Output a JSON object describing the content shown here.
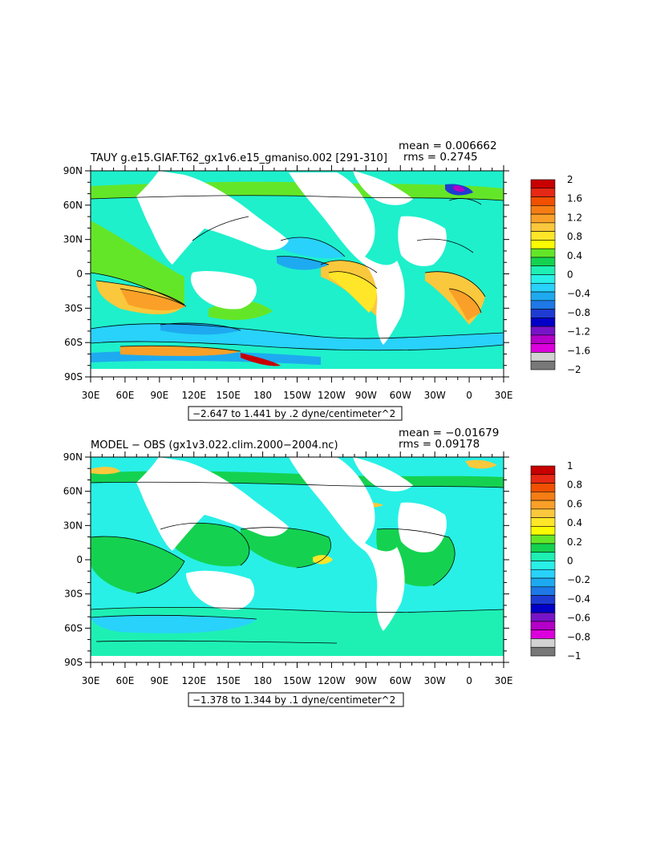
{
  "colors": {
    "ocean_base": "#1ef0cc",
    "land": "#ffffff",
    "contour": "#000000"
  },
  "panels": [
    {
      "id": "top",
      "title": "TAUY g.e15.GIAF.T62_gx1v6.e15_gmaniso.002 [291-310]",
      "mean_text": "mean = 0.006662",
      "rms_text": "rms = 0.2745",
      "range_text": "−2.647 to 1.441 by .2 dyne/centimeter^2",
      "colorbar": {
        "labels": [
          "2",
          "1.6",
          "1.2",
          "0.8",
          "0.4",
          "0",
          "−0.4",
          "−0.8",
          "−1.2",
          "−1.6",
          "−2"
        ],
        "colors": [
          "#c80000",
          "#e62814",
          "#f05000",
          "#f57d14",
          "#faa028",
          "#fac83c",
          "#ffe628",
          "#fafa00",
          "#64e628",
          "#14d250",
          "#1ef0b4",
          "#28f0e6",
          "#28d2fa",
          "#1eaaf0",
          "#1e78e6",
          "#1e3cd2",
          "#0000c8",
          "#7814c8",
          "#b400c8",
          "#dc00dc",
          "#d2d2d2",
          "#787878"
        ]
      }
    },
    {
      "id": "bottom",
      "title": "MODEL − OBS (gx1v3.022.clim.2000−2004.nc)",
      "mean_text": "mean = −0.01679",
      "rms_text": "rms = 0.09178",
      "range_text": "−1.378 to 1.344 by .1 dyne/centimeter^2",
      "colorbar": {
        "labels": [
          "1",
          "0.8",
          "0.6",
          "0.4",
          "0.2",
          "0",
          "−0.2",
          "−0.4",
          "−0.6",
          "−0.8",
          "−1"
        ],
        "colors": [
          "#c80000",
          "#e62814",
          "#f05000",
          "#f57d14",
          "#faa028",
          "#fac83c",
          "#ffe628",
          "#fafa00",
          "#64e628",
          "#14d250",
          "#1ef0b4",
          "#28f0e6",
          "#28d2fa",
          "#1eaaf0",
          "#1e78e6",
          "#1e3cd2",
          "#0000c8",
          "#7814c8",
          "#b400c8",
          "#dc00dc",
          "#d2d2d2",
          "#787878"
        ]
      }
    }
  ],
  "axes": {
    "lat_labels": [
      "90N",
      "60N",
      "30N",
      "0",
      "30S",
      "60S",
      "90S"
    ],
    "lon_labels": [
      "30E",
      "60E",
      "90E",
      "120E",
      "150E",
      "180",
      "150W",
      "120W",
      "90W",
      "60W",
      "30W",
      "0",
      "30E"
    ]
  }
}
